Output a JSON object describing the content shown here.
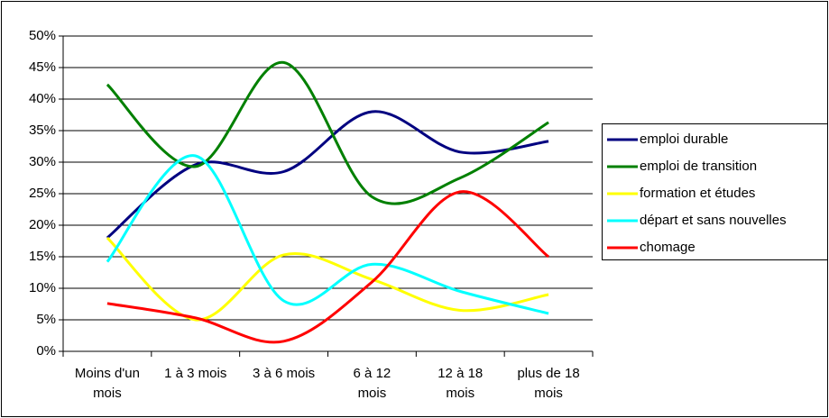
{
  "chart_data": {
    "type": "line",
    "categories": [
      "Moins d'un mois",
      "1 à 3 mois",
      "3 à 6 mois",
      "6 à 12 mois",
      "12 à 18 mois",
      "plus de 18 mois"
    ],
    "series": [
      {
        "name": "emploi durable",
        "color": "#000080",
        "values": [
          18,
          29.6,
          28.5,
          38,
          31.6,
          33.3
        ]
      },
      {
        "name": "emploi de transition",
        "color": "#008000",
        "values": [
          42.3,
          29.3,
          45.8,
          24.5,
          27.5,
          36.3
        ]
      },
      {
        "name": "formation et études",
        "color": "#ffff00",
        "values": [
          18,
          5,
          15.3,
          11.4,
          6.5,
          9
        ]
      },
      {
        "name": "départ et sans nouvelles",
        "color": "#00ffff",
        "values": [
          14.2,
          31,
          8,
          13.8,
          9.5,
          6
        ]
      },
      {
        "name": "chomage",
        "color": "#ff0000",
        "values": [
          7.6,
          5.3,
          1.6,
          11,
          25.3,
          15
        ]
      }
    ],
    "ylim": [
      0,
      50
    ],
    "yticks": [
      {
        "value": 0,
        "label": "0%"
      },
      {
        "value": 5,
        "label": "5%"
      },
      {
        "value": 10,
        "label": "10%"
      },
      {
        "value": 15,
        "label": "15%"
      },
      {
        "value": 20,
        "label": "20%"
      },
      {
        "value": 25,
        "label": "25%"
      },
      {
        "value": 30,
        "label": "30%"
      },
      {
        "value": 35,
        "label": "35%"
      },
      {
        "value": 40,
        "label": "40%"
      },
      {
        "value": 45,
        "label": "45%"
      },
      {
        "value": 50,
        "label": "50%"
      }
    ],
    "grid": true,
    "smooth": true,
    "legend": "right"
  }
}
